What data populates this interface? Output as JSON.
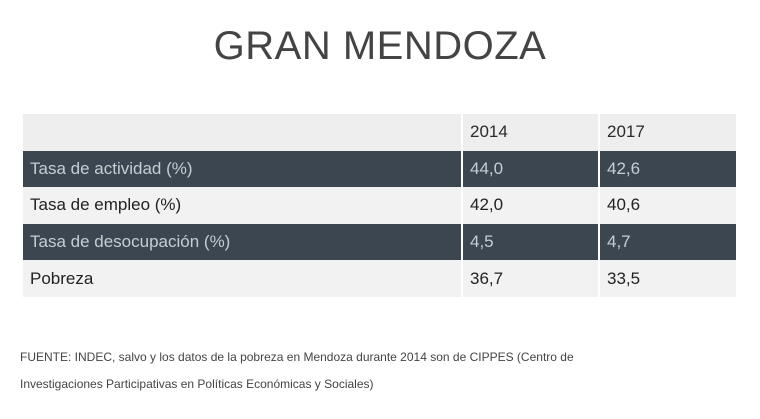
{
  "title": "GRAN MENDOZA",
  "chart_data": {
    "type": "table",
    "columns": [
      "",
      "2014",
      "2017"
    ],
    "rows": [
      {
        "label": "Tasa de actividad (%)",
        "values": [
          "44,0",
          "42,6"
        ]
      },
      {
        "label": "Tasa de empleo (%)",
        "values": [
          "42,0",
          "40,6"
        ]
      },
      {
        "label": "Tasa de desocupación (%)",
        "values": [
          "4,5",
          "4,7"
        ]
      },
      {
        "label": "Pobreza",
        "values": [
          "36,7",
          "33,5"
        ]
      }
    ]
  },
  "colors": {
    "header_bg": "#eeeeee",
    "dark_row_bg": "#3b4650",
    "light_row_bg": "#f2f2f2"
  },
  "source_line1": "FUENTE: INDEC, salvo y los datos de la pobreza en Mendoza durante 2014 son de CIPPES (Centro de",
  "source_line2": "Investigaciones Participativas en Políticas Económicas y Sociales)"
}
